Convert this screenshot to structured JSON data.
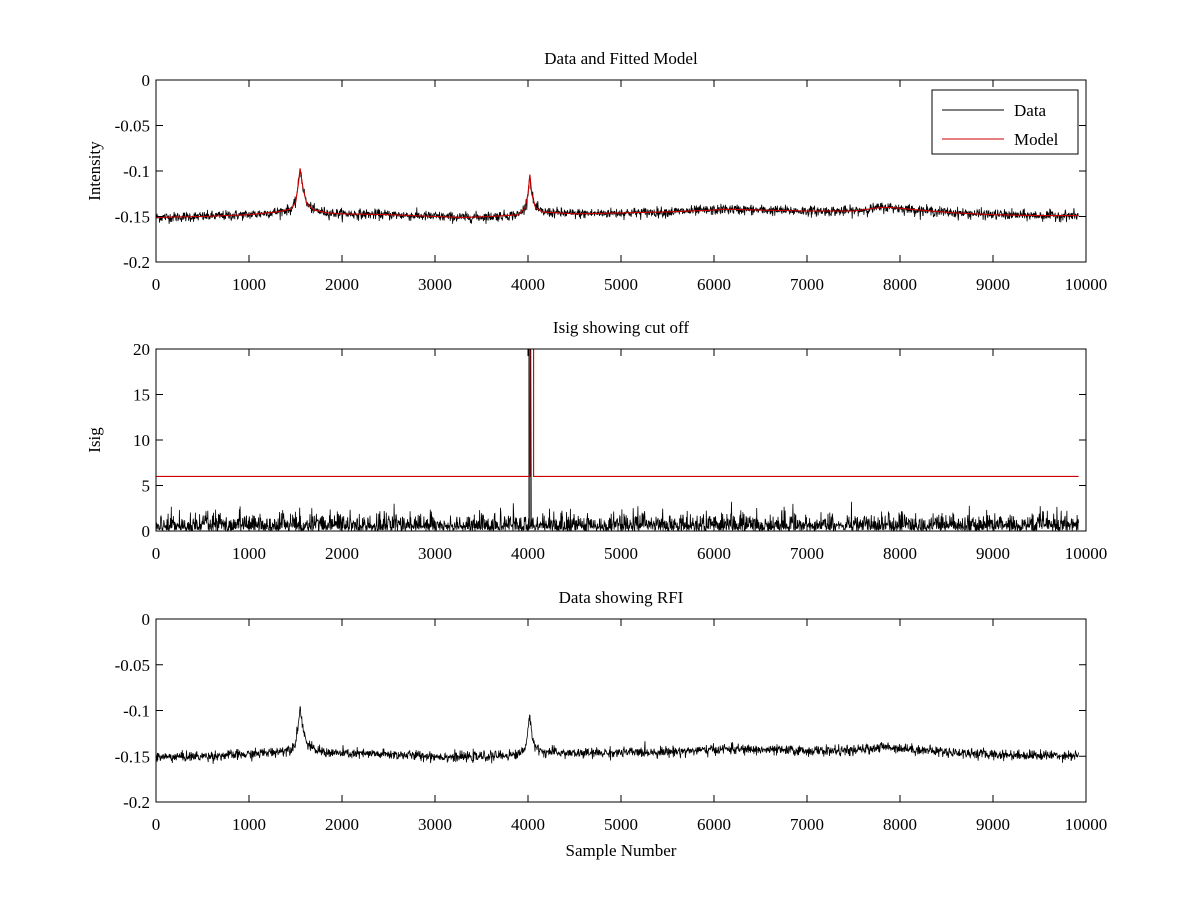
{
  "chart_data": [
    {
      "type": "line",
      "title": "Data and Fitted Model",
      "xlabel": "",
      "ylabel": "Intensity",
      "xlim": [
        0,
        10000
      ],
      "ylim": [
        -0.2,
        0
      ],
      "xticks": [
        0,
        1000,
        2000,
        3000,
        4000,
        5000,
        6000,
        7000,
        8000,
        9000,
        10000
      ],
      "xtick_labels": [
        "0",
        "1000",
        "2000",
        "3000",
        "4000",
        "5000",
        "6000",
        "7000",
        "8000",
        "9000",
        "10000"
      ],
      "yticks": [
        0,
        -0.05,
        -0.1,
        -0.15,
        -0.2
      ],
      "ytick_labels": [
        "0",
        "-0.05",
        "-0.1",
        "-0.15",
        "-0.2"
      ],
      "grid": false,
      "legend": {
        "placement": "top-right",
        "entries": [
          "Data",
          "Model"
        ]
      },
      "series": [
        {
          "name": "Data",
          "color": "#000000",
          "style": "noisy",
          "noise_sd": 0.0028,
          "x": [
            0,
            500,
            1000,
            1300,
            1450,
            1500,
            1530,
            1550,
            1580,
            1620,
            1700,
            1850,
            2000,
            2500,
            3000,
            3300,
            3600,
            3900,
            3970,
            4000,
            4020,
            4040,
            4080,
            4150,
            4500,
            5000,
            5500,
            6000,
            6100,
            6500,
            7000,
            7500,
            7800,
            7900,
            8200,
            8600,
            9000,
            9500,
            9920
          ],
          "y": [
            -0.151,
            -0.15,
            -0.148,
            -0.145,
            -0.142,
            -0.135,
            -0.115,
            -0.097,
            -0.118,
            -0.136,
            -0.143,
            -0.146,
            -0.147,
            -0.148,
            -0.15,
            -0.151,
            -0.15,
            -0.148,
            -0.14,
            -0.125,
            -0.104,
            -0.125,
            -0.14,
            -0.145,
            -0.147,
            -0.146,
            -0.145,
            -0.143,
            -0.142,
            -0.143,
            -0.144,
            -0.144,
            -0.14,
            -0.14,
            -0.143,
            -0.146,
            -0.148,
            -0.149,
            -0.149
          ]
        },
        {
          "name": "Model",
          "color": "#cc0000",
          "style": "smooth",
          "x": [
            0,
            500,
            1000,
            1300,
            1450,
            1500,
            1530,
            1550,
            1580,
            1620,
            1700,
            1850,
            2000,
            2500,
            3000,
            3300,
            3600,
            3900,
            3970,
            4000,
            4020,
            4040,
            4080,
            4150,
            4500,
            5000,
            5500,
            6000,
            6100,
            6500,
            7000,
            7500,
            7800,
            7900,
            8200,
            8600,
            9000,
            9500,
            9920
          ],
          "y": [
            -0.151,
            -0.15,
            -0.148,
            -0.145,
            -0.142,
            -0.135,
            -0.115,
            -0.097,
            -0.118,
            -0.136,
            -0.143,
            -0.146,
            -0.147,
            -0.148,
            -0.15,
            -0.151,
            -0.15,
            -0.148,
            -0.14,
            -0.125,
            -0.104,
            -0.125,
            -0.14,
            -0.145,
            -0.147,
            -0.146,
            -0.145,
            -0.143,
            -0.142,
            -0.143,
            -0.144,
            -0.144,
            -0.14,
            -0.14,
            -0.143,
            -0.146,
            -0.148,
            -0.149,
            -0.149
          ]
        }
      ]
    },
    {
      "type": "line",
      "title": "Isig showing cut off",
      "xlabel": "",
      "ylabel": "Isig",
      "xlim": [
        0,
        10000
      ],
      "ylim": [
        0,
        20
      ],
      "xticks": [
        0,
        1000,
        2000,
        3000,
        4000,
        5000,
        6000,
        7000,
        8000,
        9000,
        10000
      ],
      "xtick_labels": [
        "0",
        "1000",
        "2000",
        "3000",
        "4000",
        "5000",
        "6000",
        "7000",
        "8000",
        "9000",
        "10000"
      ],
      "yticks": [
        0,
        5,
        10,
        15,
        20
      ],
      "ytick_labels": [
        "0",
        "5",
        "10",
        "15",
        "20"
      ],
      "grid": false,
      "series": [
        {
          "color": "#000000",
          "style": "abs-noise",
          "x": [
            0,
            9920
          ],
          "y": [
            0,
            0
          ],
          "noise_sd": 0.9,
          "spikes": [
            {
              "x": 4010,
              "y": 20
            },
            {
              "x": 4030,
              "y": 20
            }
          ]
        },
        {
          "color": "#cc0000",
          "style": "step",
          "x": [
            0,
            4020,
            4020,
            4060,
            4060,
            9920
          ],
          "y": [
            6,
            6,
            20,
            20,
            6,
            6
          ]
        }
      ]
    },
    {
      "type": "line",
      "title": "Data showing RFI",
      "xlabel": "Sample Number",
      "ylabel": "",
      "xlim": [
        0,
        10000
      ],
      "ylim": [
        -0.2,
        0
      ],
      "xticks": [
        0,
        1000,
        2000,
        3000,
        4000,
        5000,
        6000,
        7000,
        8000,
        9000,
        10000
      ],
      "xtick_labels": [
        "0",
        "1000",
        "2000",
        "3000",
        "4000",
        "5000",
        "6000",
        "7000",
        "8000",
        "9000",
        "10000"
      ],
      "yticks": [
        0,
        -0.05,
        -0.1,
        -0.15,
        -0.2
      ],
      "ytick_labels": [
        "0",
        "-0.05",
        "-0.1",
        "-0.15",
        "-0.2"
      ],
      "grid": false,
      "series": [
        {
          "color": "#000000",
          "style": "noisy",
          "noise_sd": 0.0028,
          "x": [
            0,
            500,
            1000,
            1300,
            1450,
            1500,
            1530,
            1550,
            1580,
            1620,
            1700,
            1850,
            2000,
            2500,
            3000,
            3300,
            3600,
            3900,
            3970,
            4000,
            4020,
            4040,
            4080,
            4150,
            4500,
            5000,
            5500,
            6000,
            6100,
            6500,
            7000,
            7500,
            7800,
            7900,
            8200,
            8600,
            9000,
            9500,
            9920
          ],
          "y": [
            -0.151,
            -0.15,
            -0.148,
            -0.145,
            -0.142,
            -0.135,
            -0.115,
            -0.097,
            -0.118,
            -0.136,
            -0.143,
            -0.146,
            -0.147,
            -0.148,
            -0.15,
            -0.151,
            -0.15,
            -0.148,
            -0.14,
            -0.125,
            -0.104,
            -0.125,
            -0.14,
            -0.145,
            -0.147,
            -0.146,
            -0.145,
            -0.143,
            -0.142,
            -0.143,
            -0.144,
            -0.144,
            -0.14,
            -0.14,
            -0.143,
            -0.146,
            -0.148,
            -0.149,
            -0.149
          ]
        }
      ]
    }
  ]
}
